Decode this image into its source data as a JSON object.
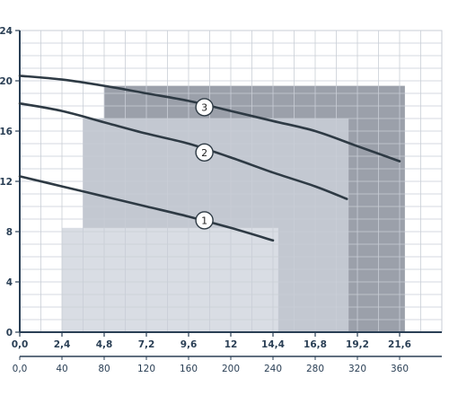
{
  "chart_data": {
    "type": "line",
    "xlim": [
      0,
      24
    ],
    "ylim": [
      0,
      24
    ],
    "x_ticks": [
      "0,0",
      "2,4",
      "4,8",
      "7,2",
      "9,6",
      "12",
      "14,4",
      "16,8",
      "19,2",
      "21,6"
    ],
    "x_tick_values": [
      0,
      2.4,
      4.8,
      7.2,
      9.6,
      12,
      14.4,
      16.8,
      19.2,
      21.6
    ],
    "x2_ticks": [
      "0,0",
      "40",
      "80",
      "120",
      "160",
      "200",
      "240",
      "280",
      "320",
      "360"
    ],
    "y_ticks": [
      "0",
      "4",
      "8",
      "12",
      "16",
      "20",
      "24"
    ],
    "y_tick_values": [
      0,
      4,
      8,
      12,
      16,
      20,
      24
    ],
    "grid": true,
    "colors": {
      "grid": "#c9ced6",
      "axis": "#2a3f55",
      "curve": "#2e3a44",
      "zone1": "#d9dde4",
      "zone2": "#c3c8d1",
      "zone3": "#9ba0aa"
    },
    "zones": [
      {
        "name": "1",
        "x_start": 2.4,
        "x_end": 14.7,
        "y_top": 8.3
      },
      {
        "name": "2",
        "x_start": 3.6,
        "x_end": 18.7,
        "y_top": 17.0
      },
      {
        "name": "3",
        "x_start": 4.8,
        "x_end": 21.9,
        "y_top": 19.6
      }
    ],
    "series": [
      {
        "name": "1",
        "x": [
          0.0,
          2.4,
          4.8,
          7.2,
          9.6,
          12.0,
          14.4
        ],
        "y": [
          12.4,
          11.6,
          10.8,
          10.0,
          9.2,
          8.3,
          7.3
        ]
      },
      {
        "name": "2",
        "x": [
          0.0,
          2.4,
          4.8,
          7.2,
          9.6,
          12.0,
          14.4,
          16.8,
          18.6
        ],
        "y": [
          18.2,
          17.6,
          16.7,
          15.8,
          15.0,
          13.9,
          12.7,
          11.6,
          10.6
        ]
      },
      {
        "name": "3",
        "x": [
          0.0,
          2.4,
          4.8,
          7.2,
          9.6,
          12.0,
          14.4,
          16.8,
          19.2,
          21.6
        ],
        "y": [
          20.4,
          20.1,
          19.6,
          19.0,
          18.4,
          17.6,
          16.8,
          16.0,
          14.8,
          13.6
        ]
      }
    ],
    "curve_labels": [
      {
        "name": "1",
        "x": 10.5,
        "y": 8.9
      },
      {
        "name": "2",
        "x": 10.5,
        "y": 14.3
      },
      {
        "name": "3",
        "x": 10.5,
        "y": 17.9
      }
    ]
  }
}
